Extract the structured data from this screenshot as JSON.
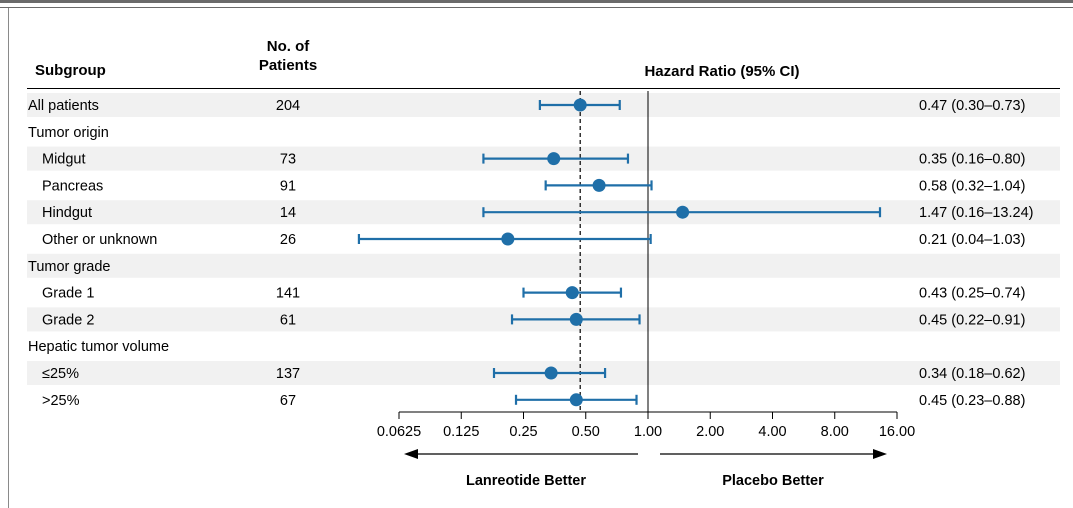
{
  "headers": {
    "subgroup": "Subgroup",
    "patients_line1": "No. of",
    "patients_line2": "Patients",
    "hazard_ratio": "Hazard Ratio (95% CI)"
  },
  "colors": {
    "marker": "#1f6fa8",
    "band": "#f1f1f1",
    "rule": "#6b6b6b"
  },
  "chart_data": {
    "type": "forest",
    "x_scale": "log2",
    "xlim": [
      0.0625,
      16
    ],
    "reference_line": 1.0,
    "overall_dashed_line": 0.47,
    "xticks": [
      {
        "value": 0.0625,
        "label": "0.0625"
      },
      {
        "value": 0.125,
        "label": "0.125"
      },
      {
        "value": 0.25,
        "label": "0.25"
      },
      {
        "value": 0.5,
        "label": "0.50"
      },
      {
        "value": 1,
        "label": "1.00"
      },
      {
        "value": 2,
        "label": "2.00"
      },
      {
        "value": 4,
        "label": "4.00"
      },
      {
        "value": 8,
        "label": "8.00"
      },
      {
        "value": 16,
        "label": "16.00"
      }
    ],
    "left_arrow_label": "Lanreotide Better",
    "right_arrow_label": "Placebo Better",
    "rows": [
      {
        "label": "All patients",
        "indent": false,
        "n": "204",
        "hr": 0.47,
        "lo": 0.3,
        "hi": 0.73,
        "text": "0.47 (0.30–0.73)"
      },
      {
        "label": "Tumor origin",
        "indent": false,
        "n": null,
        "hr": null,
        "lo": null,
        "hi": null,
        "text": null
      },
      {
        "label": "Midgut",
        "indent": true,
        "n": "73",
        "hr": 0.35,
        "lo": 0.16,
        "hi": 0.8,
        "text": "0.35 (0.16–0.80)"
      },
      {
        "label": "Pancreas",
        "indent": true,
        "n": "91",
        "hr": 0.58,
        "lo": 0.32,
        "hi": 1.04,
        "text": "0.58 (0.32–1.04)"
      },
      {
        "label": "Hindgut",
        "indent": true,
        "n": "14",
        "hr": 1.47,
        "lo": 0.16,
        "hi": 13.24,
        "text": "1.47 (0.16–13.24)"
      },
      {
        "label": "Other or unknown",
        "indent": true,
        "n": "26",
        "hr": 0.21,
        "lo": 0.04,
        "hi": 1.03,
        "text": "0.21 (0.04–1.03)"
      },
      {
        "label": "Tumor grade",
        "indent": false,
        "n": null,
        "hr": null,
        "lo": null,
        "hi": null,
        "text": null
      },
      {
        "label": "Grade 1",
        "indent": true,
        "n": "141",
        "hr": 0.43,
        "lo": 0.25,
        "hi": 0.74,
        "text": "0.43 (0.25–0.74)"
      },
      {
        "label": "Grade 2",
        "indent": true,
        "n": "61",
        "hr": 0.45,
        "lo": 0.22,
        "hi": 0.91,
        "text": "0.45 (0.22–0.91)"
      },
      {
        "label": "Hepatic tumor volume",
        "indent": false,
        "n": null,
        "hr": null,
        "lo": null,
        "hi": null,
        "text": null
      },
      {
        "label": "≤25%",
        "indent": true,
        "n": "137",
        "hr": 0.34,
        "lo": 0.18,
        "hi": 0.62,
        "text": "0.34 (0.18–0.62)"
      },
      {
        "label": ">25%",
        "indent": true,
        "n": "67",
        "hr": 0.45,
        "lo": 0.23,
        "hi": 0.88,
        "text": "0.45 (0.23–0.88)"
      }
    ]
  }
}
